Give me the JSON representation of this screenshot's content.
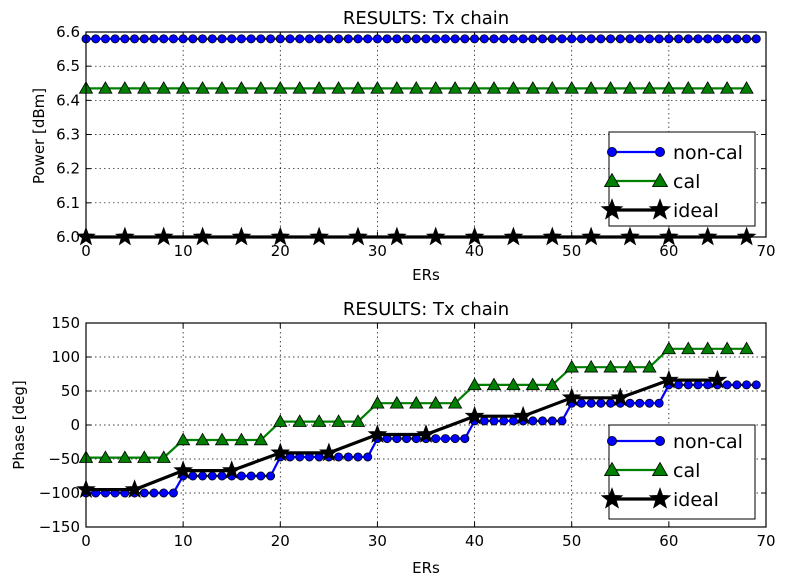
{
  "chart_data": [
    {
      "type": "line",
      "title": "RESULTS: Tx chain",
      "xlabel": "ERs",
      "ylabel": "Power [dBm]",
      "xlim": [
        0,
        70
      ],
      "ylim": [
        6.0,
        6.6
      ],
      "xticks": [
        "0",
        "10",
        "20",
        "30",
        "40",
        "50",
        "60",
        "70"
      ],
      "yticks": [
        "6.0",
        "6.1",
        "6.2",
        "6.3",
        "6.4",
        "6.5",
        "6.6"
      ],
      "grid": true,
      "legend_position": "lower-right",
      "series": [
        {
          "name": "non-cal",
          "marker": "circle",
          "color": "#0000ff",
          "x_start": 0,
          "x_step": 1,
          "count": 70,
          "values": [
            6.58
          ]
        },
        {
          "name": "cal",
          "marker": "triangle",
          "color": "#008000",
          "x_start": 0,
          "x_step": 2,
          "count": 35,
          "values": [
            6.435
          ]
        },
        {
          "name": "ideal",
          "marker": "star",
          "color": "#000000",
          "x_start": 0,
          "x_step": 4,
          "count": 18,
          "values": [
            6.0
          ]
        }
      ]
    },
    {
      "type": "line",
      "title": "RESULTS: Tx chain",
      "xlabel": "ERs",
      "ylabel": "Phase [deg]",
      "xlim": [
        0,
        70
      ],
      "ylim": [
        -150,
        150
      ],
      "xticks": [
        "0",
        "10",
        "20",
        "30",
        "40",
        "50",
        "60",
        "70"
      ],
      "yticks": [
        "−150",
        "−100",
        "−50",
        "0",
        "50",
        "100",
        "150"
      ],
      "grid": true,
      "legend_position": "lower-right",
      "series": [
        {
          "name": "non-cal",
          "marker": "circle",
          "color": "#0000ff",
          "x_start": 0,
          "x_step": 1,
          "count": 70,
          "group_size": 10,
          "values": [
            -100,
            -75,
            -47,
            -20,
            6,
            32,
            59
          ]
        },
        {
          "name": "cal",
          "marker": "triangle",
          "color": "#008000",
          "x_start": 0,
          "x_step": 2,
          "count": 35,
          "group_size": 5,
          "values": [
            -48,
            -22,
            5,
            32,
            59,
            85,
            112
          ]
        },
        {
          "name": "ideal",
          "marker": "star",
          "color": "#000000",
          "x_start": 0,
          "x_step": 5,
          "count": 14,
          "group_size": 2,
          "values": [
            -95,
            -67,
            -41,
            -14,
            13,
            40,
            66
          ]
        }
      ]
    }
  ]
}
